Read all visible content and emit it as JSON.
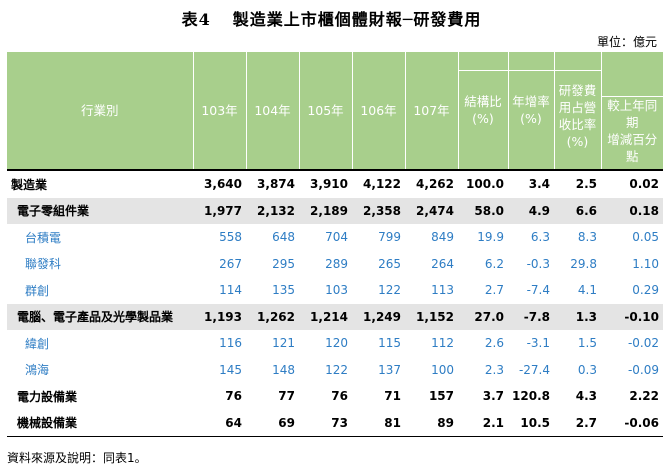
{
  "title": {
    "number": "表4",
    "text": "製造業上市櫃個體財報─研發費用"
  },
  "unit": "單位：億元",
  "header": {
    "industry": "行業別",
    "years": [
      "103年",
      "104年",
      "105年",
      "106年",
      "107年"
    ],
    "share_line1": "結構比",
    "share_line2": "(%)",
    "growth_line1": "年增率",
    "growth_line2": "(%)",
    "ratio_line1": "研發費",
    "ratio_line2": "用占營",
    "ratio_line3": "收比率",
    "ratio_line4": "(%)",
    "diff_line1": "較上年同期",
    "diff_line2": "增減百分點"
  },
  "rows": [
    {
      "name": "製造業",
      "level": "lvl0",
      "v103": "3,640",
      "v104": "3,874",
      "v105": "3,910",
      "v106": "4,122",
      "v107": "4,262",
      "share": "100.0",
      "growth": "3.4",
      "ratio": "2.5",
      "diff": "0.02"
    },
    {
      "name": "電子零組件業",
      "level": "lvl1",
      "v103": "1,977",
      "v104": "2,132",
      "v105": "2,189",
      "v106": "2,358",
      "v107": "2,474",
      "share": "58.0",
      "growth": "4.9",
      "ratio": "6.6",
      "diff": "0.18"
    },
    {
      "name": "台積電",
      "level": "lvl2",
      "v103": "558",
      "v104": "648",
      "v105": "704",
      "v106": "799",
      "v107": "849",
      "share": "19.9",
      "growth": "6.3",
      "ratio": "8.3",
      "diff": "0.05"
    },
    {
      "name": "聯發科",
      "level": "lvl2",
      "v103": "267",
      "v104": "295",
      "v105": "289",
      "v106": "265",
      "v107": "264",
      "share": "6.2",
      "growth": "-0.3",
      "ratio": "29.8",
      "diff": "1.10"
    },
    {
      "name": "群創",
      "level": "lvl2",
      "v103": "114",
      "v104": "135",
      "v105": "103",
      "v106": "122",
      "v107": "113",
      "share": "2.7",
      "growth": "-7.4",
      "ratio": "4.1",
      "diff": "0.29"
    },
    {
      "name": "電腦、電子產品及光學製品業",
      "level": "lvl1",
      "v103": "1,193",
      "v104": "1,262",
      "v105": "1,214",
      "v106": "1,249",
      "v107": "1,152",
      "share": "27.0",
      "growth": "-7.8",
      "ratio": "1.3",
      "diff": "-0.10"
    },
    {
      "name": "緯創",
      "level": "lvl2",
      "v103": "116",
      "v104": "121",
      "v105": "120",
      "v106": "115",
      "v107": "112",
      "share": "2.6",
      "growth": "-3.1",
      "ratio": "1.5",
      "diff": "-0.02"
    },
    {
      "name": "鴻海",
      "level": "lvl2",
      "v103": "145",
      "v104": "148",
      "v105": "122",
      "v106": "137",
      "v107": "100",
      "share": "2.3",
      "growth": "-27.4",
      "ratio": "0.3",
      "diff": "-0.09"
    },
    {
      "name": "電力設備業",
      "level": "ind",
      "v103": "76",
      "v104": "77",
      "v105": "76",
      "v106": "71",
      "v107": "157",
      "share": "3.7",
      "growth": "120.8",
      "ratio": "4.3",
      "diff": "2.22"
    },
    {
      "name": "機械設備業",
      "level": "ind last",
      "v103": "64",
      "v104": "69",
      "v105": "73",
      "v106": "81",
      "v107": "89",
      "share": "2.1",
      "growth": "10.5",
      "ratio": "2.7",
      "diff": "-0.06"
    }
  ],
  "source": "資料來源及說明：同表1。"
}
